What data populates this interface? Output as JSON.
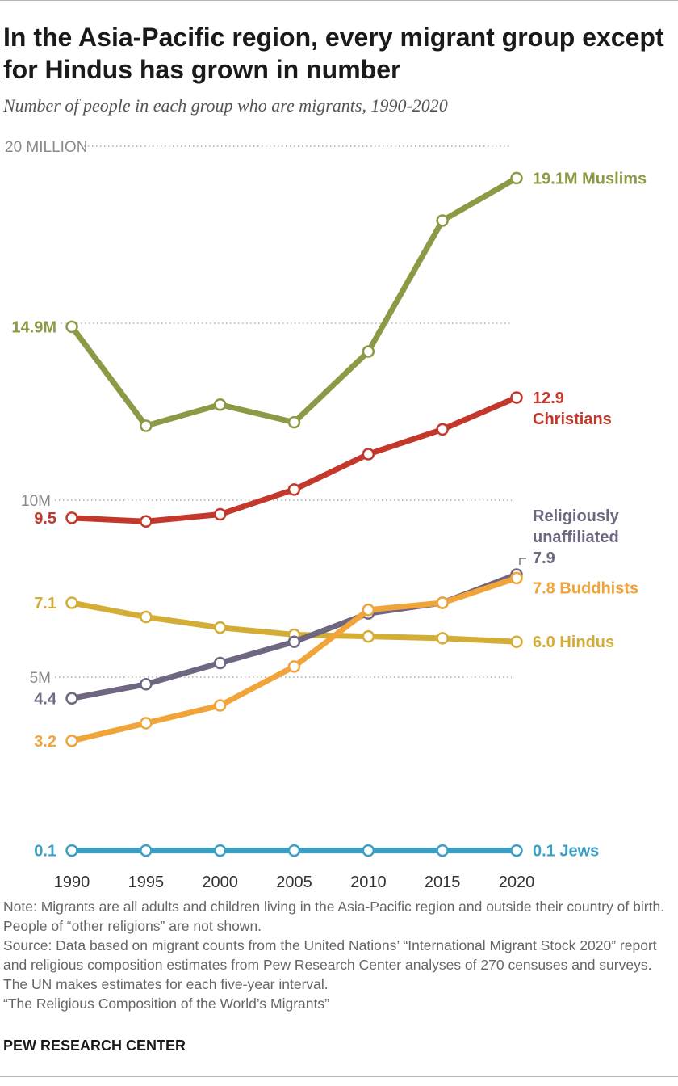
{
  "header": {
    "title": "In the Asia-Pacific region, every migrant group except for Hindus has grown in number",
    "subtitle": "Number of people in each group who are migrants, 1990-2020"
  },
  "chart_data": {
    "type": "line",
    "x": [
      1990,
      1995,
      2000,
      2005,
      2010,
      2015,
      2020
    ],
    "ylim": [
      0,
      20
    ],
    "yunit": "million",
    "grid": true,
    "grid_style": "dotted",
    "gridlines": [
      {
        "value": 20,
        "label": "20 MILLION"
      },
      {
        "value": 15,
        "label": ""
      },
      {
        "value": 10,
        "label": "10M"
      },
      {
        "value": 5,
        "label": "5M"
      }
    ],
    "series": [
      {
        "key": "muslims",
        "color": "#8a9a45",
        "values": [
          14.9,
          12.1,
          12.7,
          12.2,
          14.2,
          17.9,
          19.1
        ],
        "start_label": "14.9M",
        "end_label": "19.1M Muslims",
        "end_label_lines": [
          "19.1M Muslims"
        ]
      },
      {
        "key": "christians",
        "color": "#c4382b",
        "values": [
          9.5,
          9.4,
          9.6,
          10.3,
          11.3,
          12.0,
          12.9
        ],
        "start_label": "9.5",
        "end_label": "12.9 Christians",
        "end_label_lines": [
          "12.9",
          "Christians"
        ]
      },
      {
        "key": "unaffiliated",
        "color": "#6f6680",
        "values": [
          4.4,
          4.8,
          5.4,
          6.0,
          6.8,
          7.1,
          7.9
        ],
        "start_label": "4.4",
        "end_label": "Religiously unaffiliated 7.9",
        "end_label_lines": [
          "Religiously",
          "unaffiliated",
          "7.9"
        ]
      },
      {
        "key": "buddhists",
        "color": "#f0a43a",
        "values": [
          3.2,
          3.7,
          4.2,
          5.3,
          6.9,
          7.1,
          7.8
        ],
        "start_label": "3.2",
        "end_label": "7.8 Buddhists",
        "end_label_lines": [
          "7.8 Buddhists"
        ]
      },
      {
        "key": "hindus",
        "color": "#d3ad35",
        "values": [
          7.1,
          6.7,
          6.4,
          6.2,
          6.15,
          6.1,
          6.0
        ],
        "start_label": "7.1",
        "end_label": "6.0 Hindus",
        "end_label_lines": [
          "6.0 Hindus"
        ]
      },
      {
        "key": "jews",
        "color": "#3a9fc4",
        "values": [
          0.1,
          0.1,
          0.1,
          0.1,
          0.1,
          0.1,
          0.1
        ],
        "start_label": "0.1",
        "end_label": "0.1 Jews",
        "end_label_lines": [
          "0.1 Jews"
        ]
      }
    ]
  },
  "notes": {
    "note": "Note: Migrants are all adults and children living in the Asia-Pacific region and outside their country of birth. People of “other religions” are not shown.",
    "source": "Source: Data based on migrant counts from the United Nations’ “International Migrant Stock 2020” report and religious composition estimates from Pew Research Center analyses of 270 censuses and surveys. The UN makes estimates for each five-year interval.",
    "report": "“The Religious Composition of the World’s Migrants”"
  },
  "footer": {
    "brand": "PEW RESEARCH CENTER"
  }
}
